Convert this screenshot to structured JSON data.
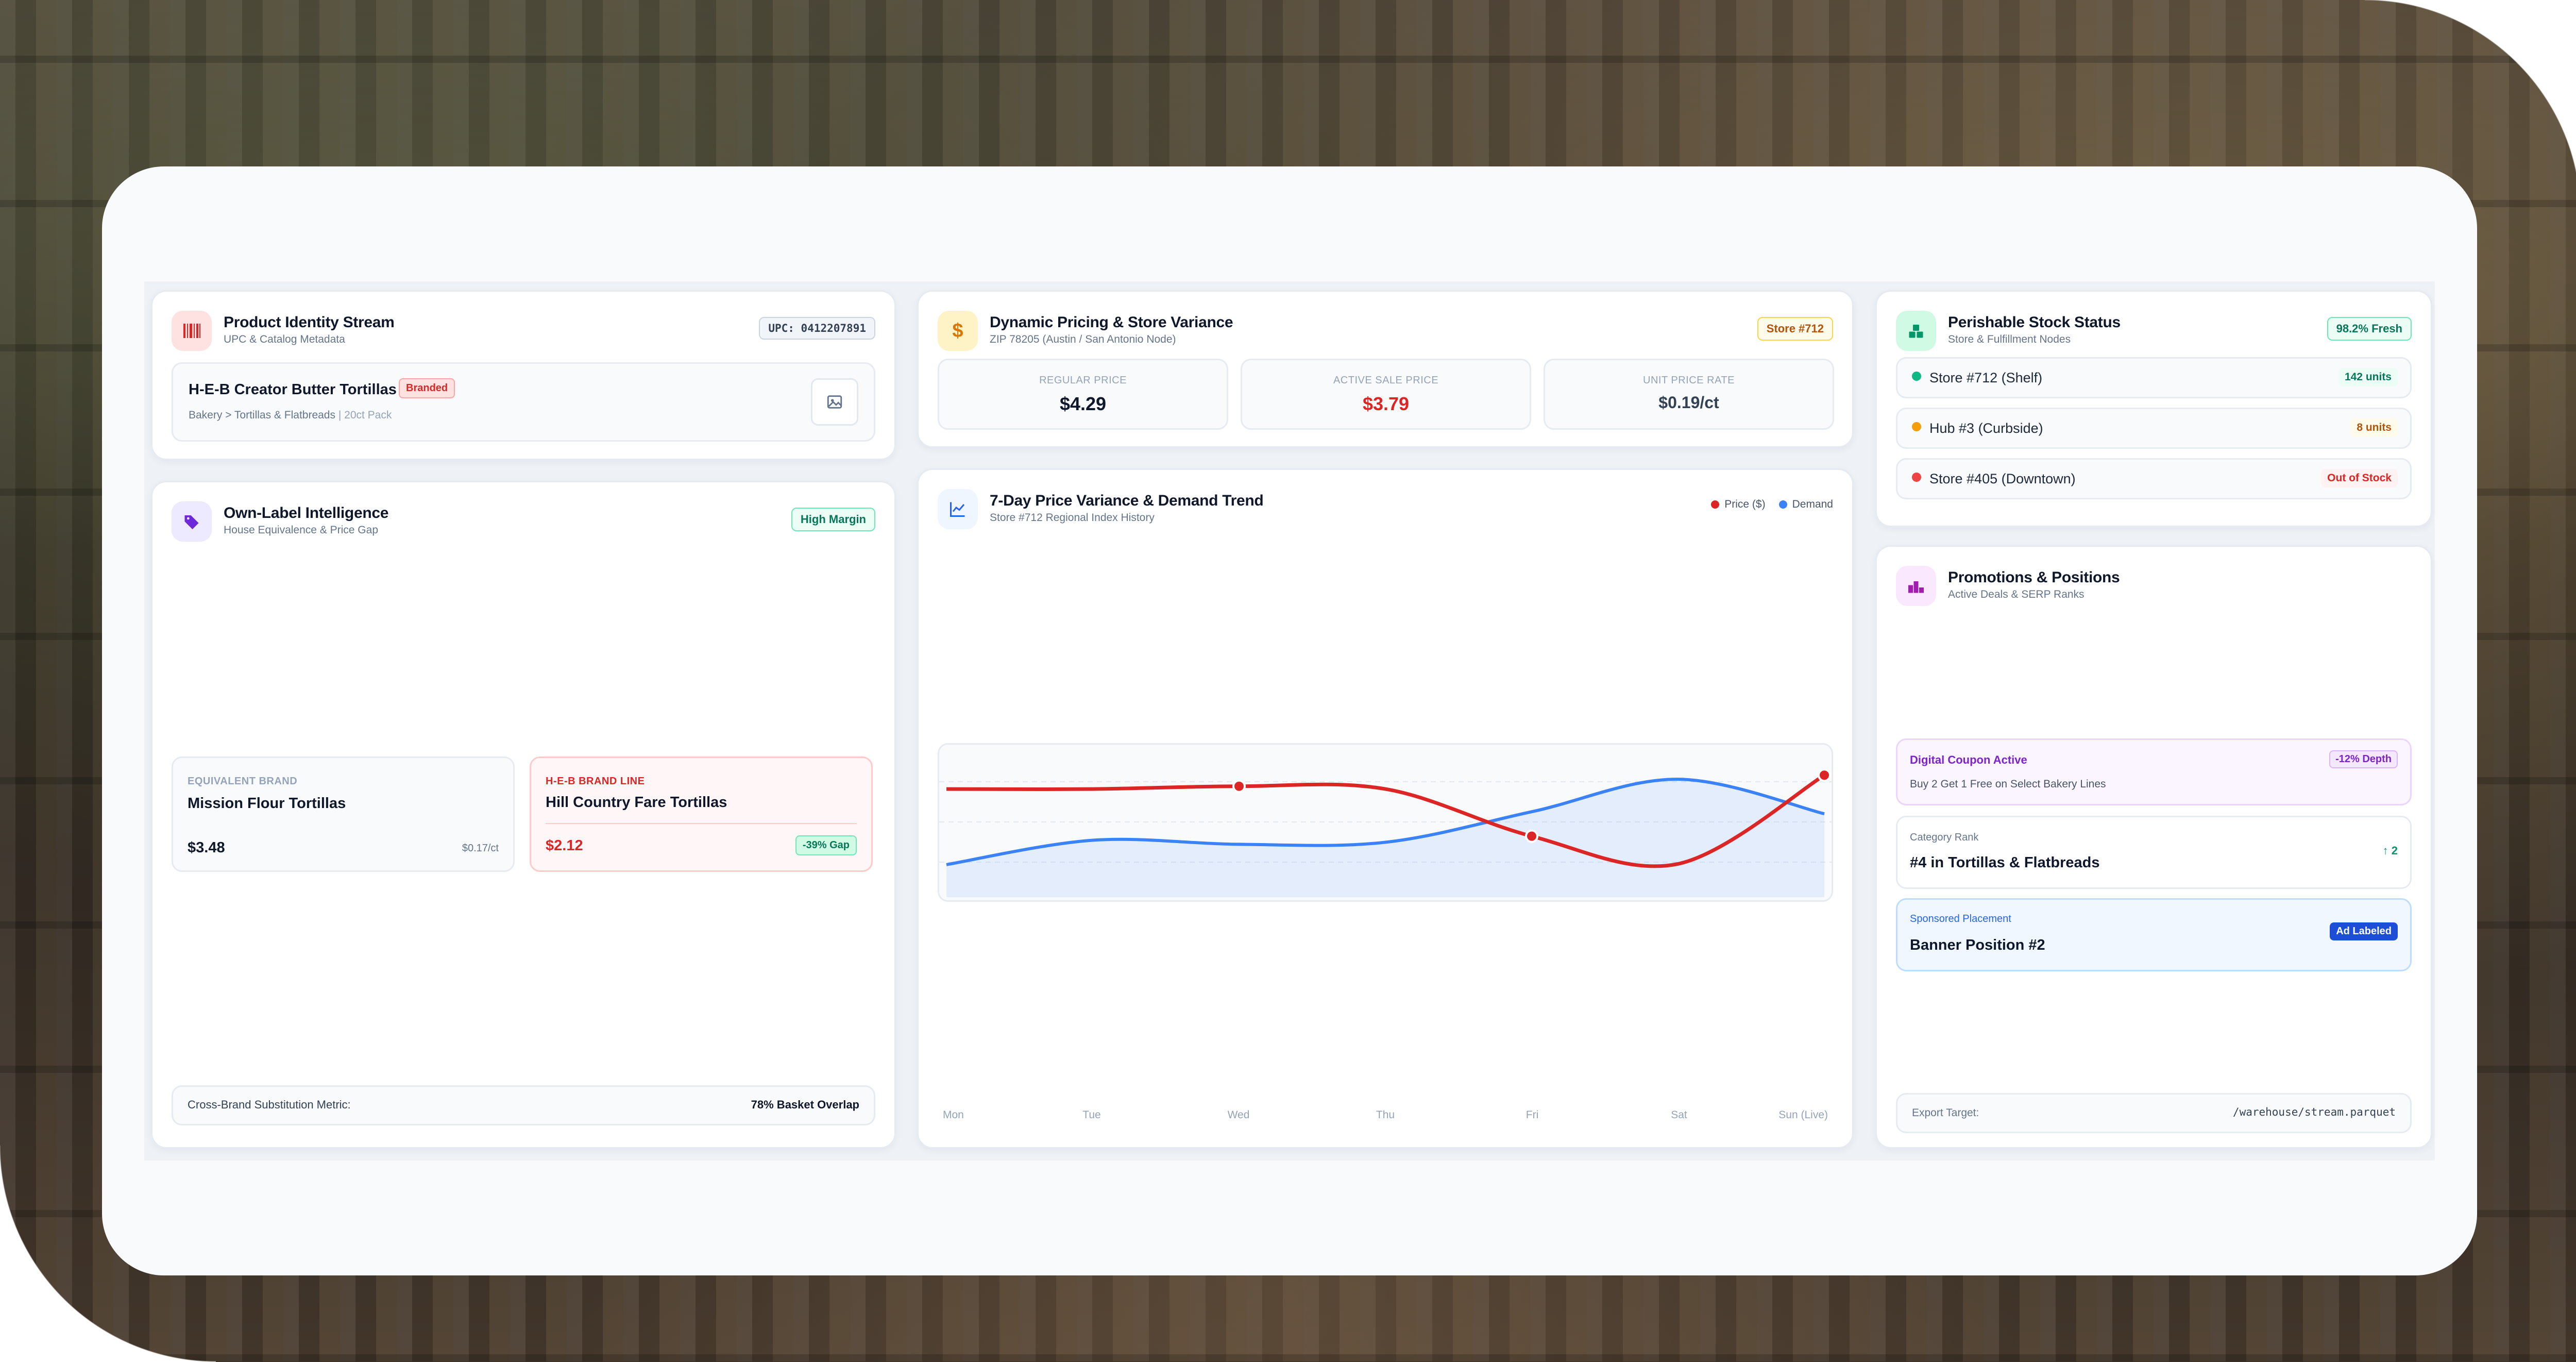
{
  "identity": {
    "title": "Product Identity Stream",
    "subtitle": "UPC & Catalog Metadata",
    "upc": "UPC: 0412207891",
    "product_name": "H-E-B Creator Butter Tortillas",
    "product_tag": "Branded",
    "breadcrumb": "Bakery > Tortillas & Flatbreads",
    "pack": "| 20ct Pack",
    "icon": "barcode-icon",
    "image_icon": "image-icon"
  },
  "own_label": {
    "title": "Own-Label Intelligence",
    "subtitle": "House Equivalence & Price Gap",
    "badge": "High Margin",
    "icon": "tag-icon",
    "equiv_label": "EQUIVALENT BRAND",
    "equiv_name": "Mission Flour Tortillas",
    "equiv_price": "$3.48",
    "equiv_unit": "$0.17/ct",
    "heb_label": "H-E-B BRAND LINE",
    "heb_name": "Hill Country Fare Tortillas",
    "heb_price": "$2.12",
    "heb_gap": "-39% Gap",
    "metric_label": "Cross-Brand Substitution Metric:",
    "metric_value": "78% Basket Overlap"
  },
  "pricing": {
    "title": "Dynamic Pricing & Store Variance",
    "subtitle": "ZIP 78205 (Austin / San Antonio Node)",
    "store_badge": "Store #712",
    "icon": "dollar-icon",
    "regular_label": "REGULAR PRICE",
    "regular_value": "$4.29",
    "sale_label": "ACTIVE SALE PRICE",
    "sale_value": "$3.79",
    "unit_label": "UNIT PRICE RATE",
    "unit_value": "$0.19/ct"
  },
  "trend": {
    "title": "7-Day Price Variance & Demand Trend",
    "subtitle": "Store #712 Regional Index History",
    "icon": "line-chart-icon",
    "legend_price": "Price ($)",
    "legend_demand": "Demand",
    "price_color": "#dc2626",
    "demand_color": "#3b82f6"
  },
  "chart_data": {
    "type": "line",
    "x": [
      "Mon",
      "Tue",
      "Wed",
      "Thu",
      "Fri",
      "Sat",
      "Sun (Live)"
    ],
    "series": [
      {
        "name": "Price ($)",
        "values": [
          4.29,
          4.29,
          4.3,
          4.29,
          4.12,
          4.02,
          4.34
        ]
      },
      {
        "name": "Demand",
        "values": [
          36,
          48,
          46,
          47,
          62,
          78,
          61
        ]
      }
    ],
    "grid": true,
    "legend": "top-right",
    "marked_points": [
      "Wed",
      "Fri",
      "Sun (Live)"
    ]
  },
  "stock": {
    "title": "Perishable Stock Status",
    "subtitle": "Store & Fulfillment Nodes",
    "badge": "98.2% Fresh",
    "icon": "boxes-icon",
    "rows": [
      {
        "name": "Store #712 (Shelf)",
        "value": "142 units",
        "color": "#10b981"
      },
      {
        "name": "Hub #3 (Curbside)",
        "value": "8 units",
        "color": "#f59e0b"
      },
      {
        "name": "Store #405 (Downtown)",
        "value": "Out of Stock",
        "color": "#ef4444"
      }
    ]
  },
  "promos": {
    "title": "Promotions & Positions",
    "subtitle": "Active Deals & SERP Ranks",
    "icon": "podium-icon",
    "coupon_title": "Digital Coupon Active",
    "coupon_badge": "-12% Depth",
    "coupon_desc": "Buy 2 Get 1 Free on Select Bakery Lines",
    "rank_label": "Category Rank",
    "rank_value": "#4 in Tortillas & Flatbreads",
    "rank_change": "↑ 2",
    "sponsored_label": "Sponsored Placement",
    "sponsored_value": "Banner Position #2",
    "sponsored_badge": "Ad Labeled",
    "export_label": "Export Target:",
    "export_value": "/warehouse/stream.parquet"
  }
}
